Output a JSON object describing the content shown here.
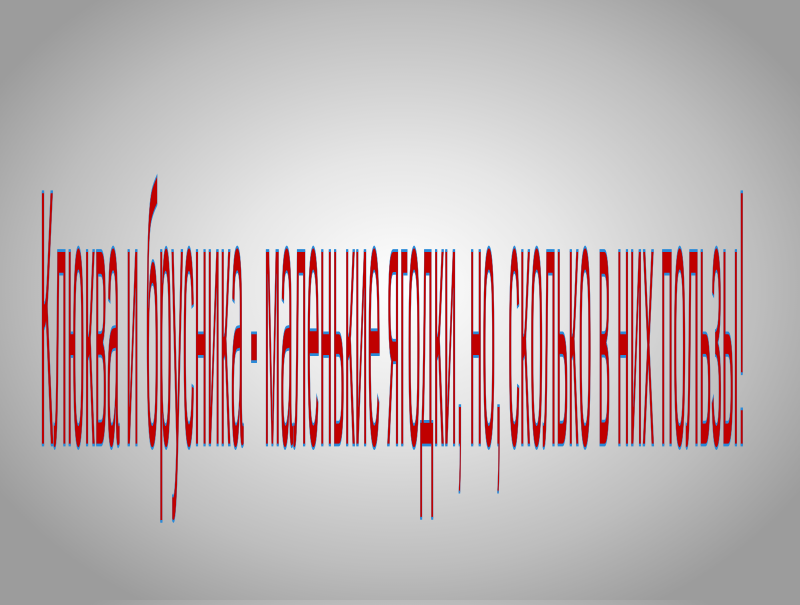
{
  "slide": {
    "wordart_text": "Клюква и брусника - маленькие ягодки, но, сколько в них пользы!",
    "fill_color": "#c00000",
    "outline_color": "#2a8ad8"
  }
}
